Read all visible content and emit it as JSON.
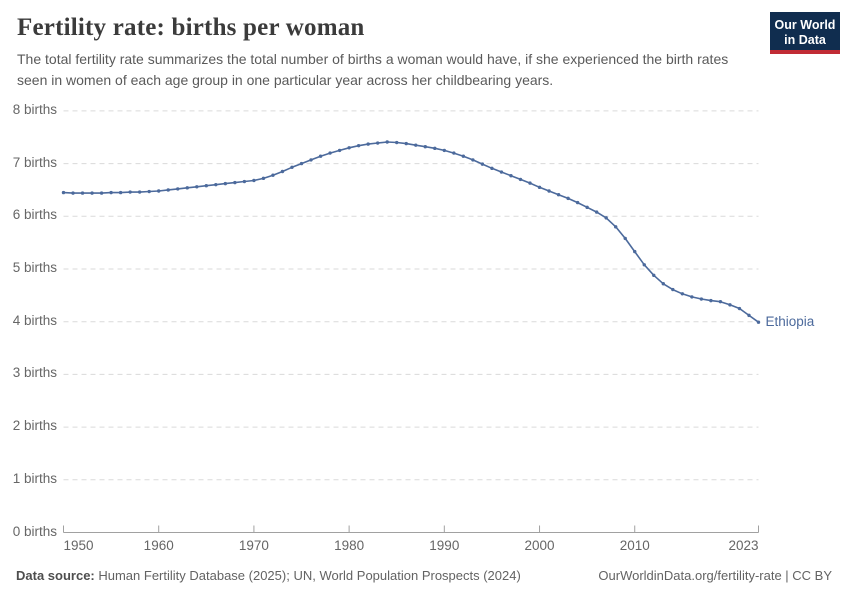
{
  "header": {
    "title": "Fertility rate: births per woman",
    "subtitle": "The total fertility rate summarizes the total number of births a woman would have, if she experienced the birth rates seen in women of each age group in one particular year across her childbearing years."
  },
  "logo": {
    "line1": "Our World",
    "line2": "in Data",
    "bg_color": "#102D4F",
    "accent_color": "#C12B35"
  },
  "chart_data": {
    "type": "line",
    "title": "Fertility rate: births per woman",
    "xlabel": "",
    "ylabel": "births per woman",
    "xlim": [
      1950,
      2023
    ],
    "ylim": [
      0,
      8
    ],
    "x_ticks": [
      1950,
      1960,
      1970,
      1980,
      1990,
      2000,
      2010,
      2023
    ],
    "y_ticks": [
      0,
      1,
      2,
      3,
      4,
      5,
      6,
      7,
      8
    ],
    "y_tick_label_format": "{v} births",
    "grid": "dashed-horizontal",
    "legend_position": "end-of-line-label",
    "end_label": "Ethiopia",
    "series": [
      {
        "name": "Ethiopia",
        "color": "#4C6A9C",
        "years": [
          1950,
          1951,
          1952,
          1953,
          1954,
          1955,
          1956,
          1957,
          1958,
          1959,
          1960,
          1961,
          1962,
          1963,
          1964,
          1965,
          1966,
          1967,
          1968,
          1969,
          1970,
          1971,
          1972,
          1973,
          1974,
          1975,
          1976,
          1977,
          1978,
          1979,
          1980,
          1981,
          1982,
          1983,
          1984,
          1985,
          1986,
          1987,
          1988,
          1989,
          1990,
          1991,
          1992,
          1993,
          1994,
          1995,
          1996,
          1997,
          1998,
          1999,
          2000,
          2001,
          2002,
          2003,
          2004,
          2005,
          2006,
          2007,
          2008,
          2009,
          2010,
          2011,
          2012,
          2013,
          2014,
          2015,
          2016,
          2017,
          2018,
          2019,
          2020,
          2021,
          2022,
          2023
        ],
        "values": [
          6.45,
          6.44,
          6.44,
          6.44,
          6.44,
          6.45,
          6.45,
          6.46,
          6.46,
          6.47,
          6.48,
          6.5,
          6.52,
          6.54,
          6.56,
          6.58,
          6.6,
          6.62,
          6.64,
          6.66,
          6.68,
          6.72,
          6.78,
          6.85,
          6.93,
          7.0,
          7.07,
          7.14,
          7.2,
          7.25,
          7.3,
          7.34,
          7.37,
          7.39,
          7.41,
          7.4,
          7.38,
          7.35,
          7.32,
          7.29,
          7.25,
          7.2,
          7.14,
          7.07,
          6.99,
          6.91,
          6.84,
          6.77,
          6.7,
          6.63,
          6.55,
          6.48,
          6.41,
          6.34,
          6.26,
          6.17,
          6.08,
          5.97,
          5.8,
          5.58,
          5.33,
          5.08,
          4.88,
          4.72,
          4.61,
          4.53,
          4.47,
          4.43,
          4.4,
          4.38,
          4.32,
          4.25,
          4.12,
          3.99
        ]
      }
    ]
  },
  "footer": {
    "datasource_label": "Data source:",
    "datasource_text": " Human Fertility Database (2025); UN, World Population Prospects (2024)",
    "credit": "OurWorldinData.org/fertility-rate | CC BY"
  }
}
